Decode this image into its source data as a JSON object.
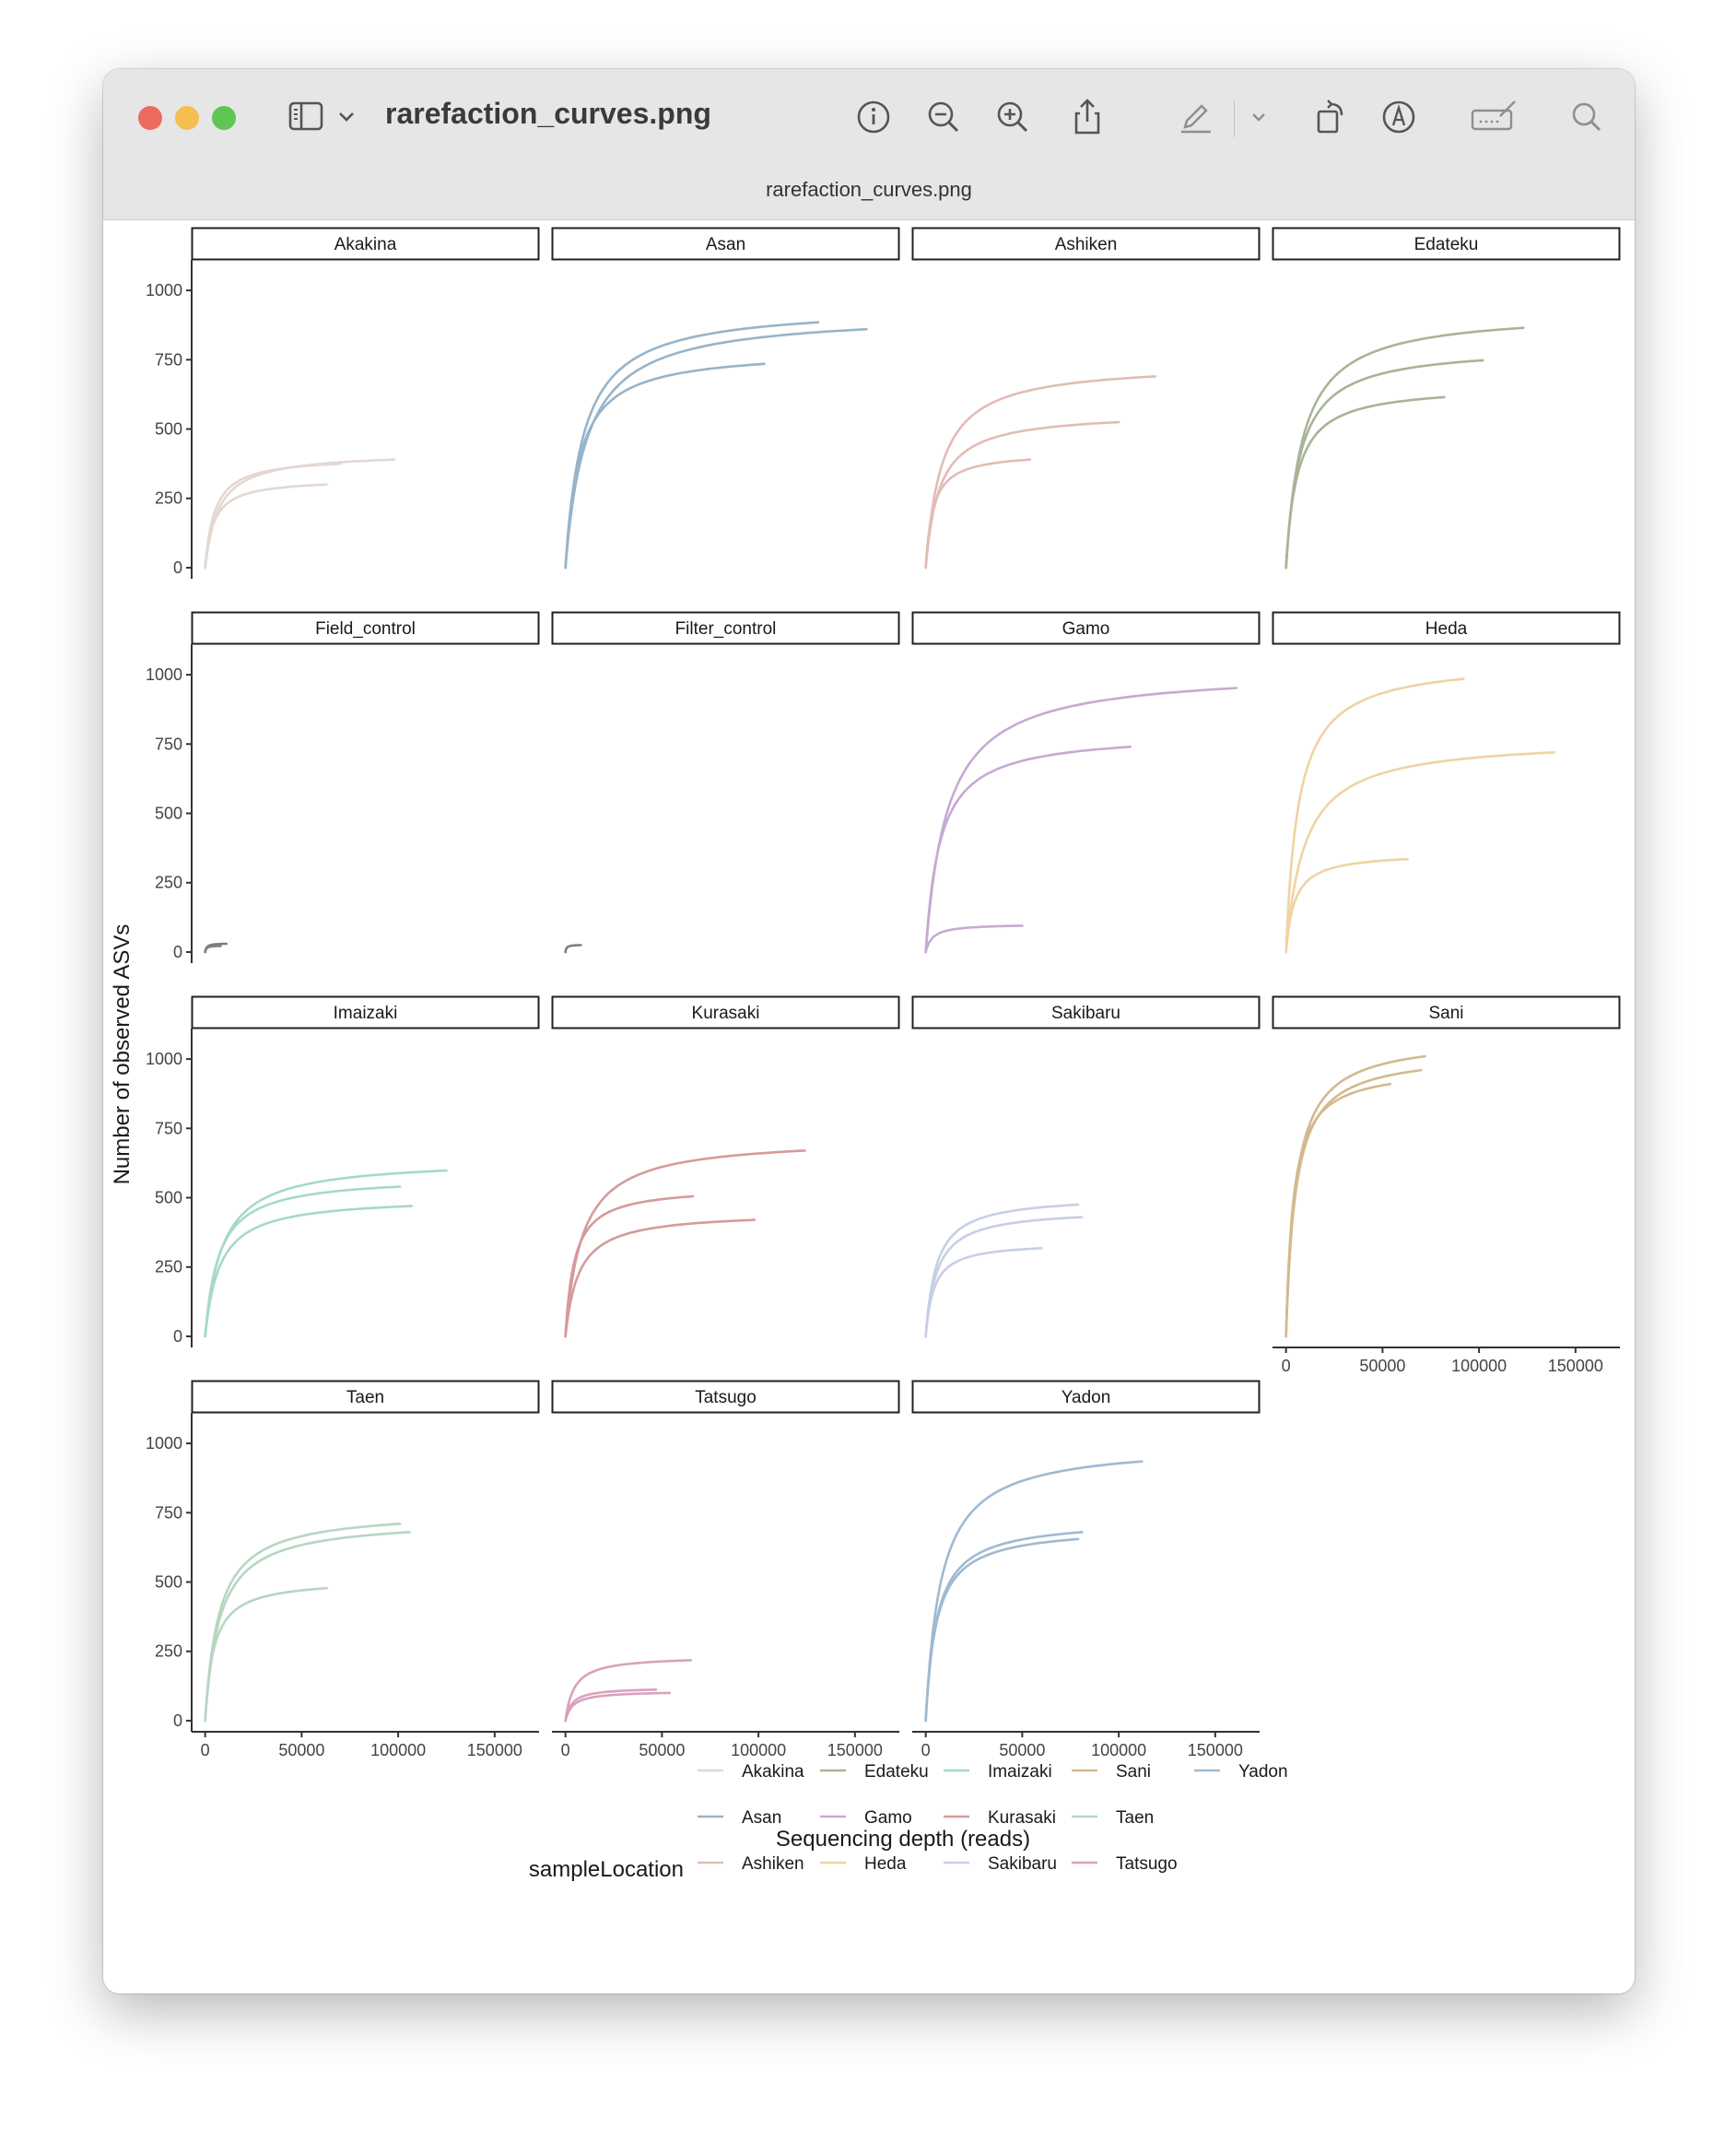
{
  "window": {
    "title": "rarefaction_curves.png",
    "subtitle": "rarefaction_curves.png"
  },
  "toolbar": {
    "icons": [
      "sidebar-toggle-icon",
      "chevron-down-icon",
      "info-icon",
      "zoom-out-icon",
      "zoom-in-icon",
      "share-icon",
      "markup-pen-icon",
      "chevron-down-icon",
      "rotate-icon",
      "markup-circle-icon",
      "signature-icon",
      "search-icon"
    ]
  },
  "chart_data": {
    "type": "line",
    "xlabel": "Sequencing depth (reads)",
    "ylabel": "Number of observed ASVs",
    "xticks": [
      0,
      50000,
      100000,
      150000
    ],
    "xtick_labels": [
      "0",
      "50000",
      "100000",
      "150000"
    ],
    "yticks": [
      0,
      250,
      500,
      750,
      1000
    ],
    "ytick_labels": [
      "0",
      "250",
      "500",
      "750",
      "1000"
    ],
    "xlim": [
      -7000,
      173000
    ],
    "ylim": [
      -40,
      1110
    ],
    "legend": {
      "title": "sampleLocation",
      "position": "bottom",
      "columns": [
        [
          "Akakina",
          "Asan",
          "Ashiken"
        ],
        [
          "Edateku",
          "Gamo",
          "Heda"
        ],
        [
          "Imaizaki",
          "Kurasaki",
          "Sakibaru"
        ],
        [
          "Sani",
          "Taen",
          "Tatsugo"
        ],
        [
          "Yadon"
        ]
      ]
    },
    "colors": {
      "Akakina": "#e3d7d2",
      "Asan": "#97b4c9",
      "Ashiken": "#e2bcb4",
      "Edateku": "#a8b496",
      "Field_control": "#7f7f7f",
      "Filter_control": "#7f7f7f",
      "Gamo": "#c7a9d4",
      "Heda": "#f0d3a2",
      "Imaizaki": "#a6d8cc",
      "Kurasaki": "#d69a9a",
      "Sakibaru": "#c6cfe6",
      "Sani": "#d4b98e",
      "Taen": "#b7d6c2",
      "Tatsugo": "#d9a1bd",
      "Yadon": "#9fb9d1"
    },
    "facets": [
      {
        "name": "Akakina",
        "series": [
          {
            "depth": 98000,
            "asv": 390
          },
          {
            "depth": 63000,
            "asv": 300
          },
          {
            "depth": 70000,
            "asv": 375
          }
        ]
      },
      {
        "name": "Asan",
        "series": [
          {
            "depth": 156000,
            "asv": 860
          },
          {
            "depth": 131000,
            "asv": 885
          },
          {
            "depth": 103000,
            "asv": 735
          }
        ]
      },
      {
        "name": "Ashiken",
        "series": [
          {
            "depth": 119000,
            "asv": 690
          },
          {
            "depth": 100000,
            "asv": 525
          },
          {
            "depth": 54000,
            "asv": 390
          }
        ]
      },
      {
        "name": "Edateku",
        "series": [
          {
            "depth": 123000,
            "asv": 865
          },
          {
            "depth": 102000,
            "asv": 748
          },
          {
            "depth": 82000,
            "asv": 615
          }
        ]
      },
      {
        "name": "Field_control",
        "series": [
          {
            "depth": 11000,
            "asv": 30
          },
          {
            "depth": 8000,
            "asv": 22
          }
        ]
      },
      {
        "name": "Filter_control",
        "series": [
          {
            "depth": 8000,
            "asv": 25
          }
        ]
      },
      {
        "name": "Gamo",
        "series": [
          {
            "depth": 161000,
            "asv": 952
          },
          {
            "depth": 106000,
            "asv": 740
          },
          {
            "depth": 50000,
            "asv": 95
          }
        ]
      },
      {
        "name": "Heda",
        "series": [
          {
            "depth": 92000,
            "asv": 985
          },
          {
            "depth": 139000,
            "asv": 720
          },
          {
            "depth": 63000,
            "asv": 335
          }
        ]
      },
      {
        "name": "Imaizaki",
        "series": [
          {
            "depth": 125000,
            "asv": 598
          },
          {
            "depth": 101000,
            "asv": 540
          },
          {
            "depth": 107000,
            "asv": 470
          }
        ]
      },
      {
        "name": "Kurasaki",
        "series": [
          {
            "depth": 124000,
            "asv": 670
          },
          {
            "depth": 66000,
            "asv": 505
          },
          {
            "depth": 98000,
            "asv": 420
          }
        ]
      },
      {
        "name": "Sakibaru",
        "series": [
          {
            "depth": 79000,
            "asv": 475
          },
          {
            "depth": 81000,
            "asv": 430
          },
          {
            "depth": 60000,
            "asv": 318
          }
        ]
      },
      {
        "name": "Sani",
        "series": [
          {
            "depth": 72000,
            "asv": 1010
          },
          {
            "depth": 70000,
            "asv": 960
          },
          {
            "depth": 54000,
            "asv": 910
          }
        ]
      },
      {
        "name": "Taen",
        "series": [
          {
            "depth": 101000,
            "asv": 710
          },
          {
            "depth": 106000,
            "asv": 680
          },
          {
            "depth": 63000,
            "asv": 478
          }
        ]
      },
      {
        "name": "Tatsugo",
        "series": [
          {
            "depth": 65000,
            "asv": 218
          },
          {
            "depth": 47000,
            "asv": 112
          },
          {
            "depth": 54000,
            "asv": 100
          }
        ]
      },
      {
        "name": "Yadon",
        "series": [
          {
            "depth": 112000,
            "asv": 935
          },
          {
            "depth": 81000,
            "asv": 680
          },
          {
            "depth": 79000,
            "asv": 655
          }
        ]
      }
    ]
  }
}
